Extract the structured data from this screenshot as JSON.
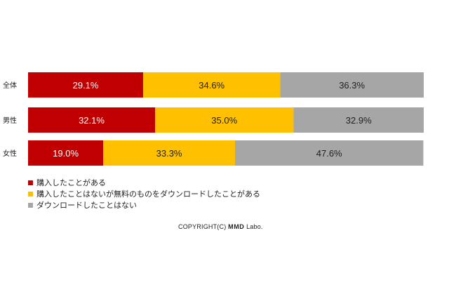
{
  "chart_data": {
    "type": "bar",
    "orientation": "horizontal",
    "stacked": true,
    "percent": true,
    "categories": [
      "全体",
      "男性",
      "女性"
    ],
    "series": [
      {
        "name": "購入したことがある",
        "values": [
          29.1,
          32.1,
          19.0
        ],
        "labels": [
          "29.1%",
          "32.1%",
          "19.0%"
        ],
        "color": "#c00000",
        "label_color": "#ffffff"
      },
      {
        "name": "購入したことはないが無料のものをダウンロードしたことがある",
        "values": [
          34.6,
          35.0,
          33.3
        ],
        "labels": [
          "34.6%",
          "35.0%",
          "33.3%"
        ],
        "color": "#ffc000",
        "label_color": "#222222"
      },
      {
        "name": "ダウンロードしたことはない",
        "values": [
          36.3,
          32.9,
          47.6
        ],
        "labels": [
          "36.3%",
          "32.9%",
          "47.6%"
        ],
        "color": "#a6a6a6",
        "label_color": "#222222"
      }
    ],
    "xlim": [
      0,
      100
    ],
    "grid": false,
    "legend_position": "bottom-left"
  },
  "copyright": {
    "prefix": "COPYRIGHT(C) ",
    "brand": "MMD",
    "suffix": " Labo."
  }
}
